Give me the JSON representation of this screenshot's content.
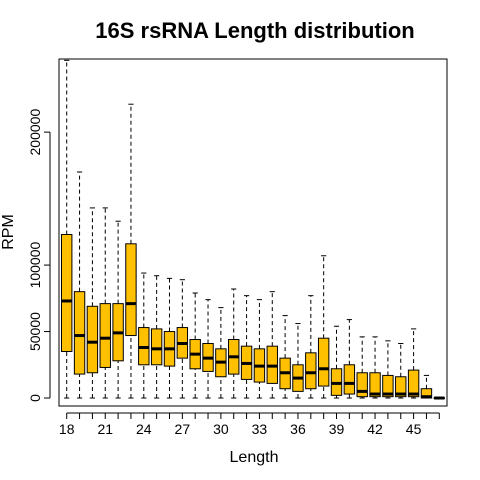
{
  "chart_data": {
    "type": "boxplot",
    "title": "16S rsRNA Length distribution",
    "xlabel": "Length",
    "ylabel": "RPM",
    "box_color": "#FFC000",
    "ylim": [
      -6000,
      255000
    ],
    "yticks": [
      0,
      50000,
      100000,
      200000
    ],
    "xtick_labels": [
      "18",
      "21",
      "24",
      "27",
      "30",
      "33",
      "36",
      "39",
      "42",
      "45"
    ],
    "categories": [
      18,
      19,
      20,
      21,
      22,
      23,
      24,
      25,
      26,
      27,
      28,
      29,
      30,
      31,
      32,
      33,
      34,
      35,
      36,
      37,
      38,
      39,
      40,
      41,
      42,
      43,
      44,
      45,
      46,
      47
    ],
    "boxes": [
      {
        "x": 18,
        "min": 0,
        "q1": 35000,
        "median": 73000,
        "q3": 123000,
        "max": 254000
      },
      {
        "x": 19,
        "min": 0,
        "q1": 18000,
        "median": 47000,
        "q3": 80000,
        "max": 170000
      },
      {
        "x": 20,
        "min": 0,
        "q1": 19000,
        "median": 42000,
        "q3": 69000,
        "max": 143000
      },
      {
        "x": 21,
        "min": 0,
        "q1": 23000,
        "median": 45000,
        "q3": 71000,
        "max": 143000
      },
      {
        "x": 22,
        "min": 0,
        "q1": 28000,
        "median": 49000,
        "q3": 71000,
        "max": 133000
      },
      {
        "x": 23,
        "min": 0,
        "q1": 47000,
        "median": 71000,
        "q3": 116000,
        "max": 221000
      },
      {
        "x": 24,
        "min": 0,
        "q1": 25000,
        "median": 38000,
        "q3": 53000,
        "max": 94000
      },
      {
        "x": 25,
        "min": 0,
        "q1": 25000,
        "median": 37000,
        "q3": 52000,
        "max": 92000
      },
      {
        "x": 26,
        "min": 0,
        "q1": 24000,
        "median": 37000,
        "q3": 50000,
        "max": 90000
      },
      {
        "x": 27,
        "min": 0,
        "q1": 30000,
        "median": 41000,
        "q3": 53000,
        "max": 89000
      },
      {
        "x": 28,
        "min": 0,
        "q1": 22000,
        "median": 33000,
        "q3": 44000,
        "max": 79000
      },
      {
        "x": 29,
        "min": 0,
        "q1": 20000,
        "median": 30000,
        "q3": 41000,
        "max": 74000
      },
      {
        "x": 30,
        "min": 0,
        "q1": 16000,
        "median": 27000,
        "q3": 37000,
        "max": 68000
      },
      {
        "x": 31,
        "min": 0,
        "q1": 18000,
        "median": 31000,
        "q3": 44000,
        "max": 82000
      },
      {
        "x": 32,
        "min": 0,
        "q1": 14000,
        "median": 26000,
        "q3": 39000,
        "max": 77000
      },
      {
        "x": 33,
        "min": 0,
        "q1": 12000,
        "median": 24000,
        "q3": 37000,
        "max": 74000
      },
      {
        "x": 34,
        "min": 0,
        "q1": 11000,
        "median": 24000,
        "q3": 39000,
        "max": 80000
      },
      {
        "x": 35,
        "min": 0,
        "q1": 7000,
        "median": 19000,
        "q3": 30000,
        "max": 62000
      },
      {
        "x": 36,
        "min": 0,
        "q1": 5000,
        "median": 15000,
        "q3": 25000,
        "max": 56000
      },
      {
        "x": 37,
        "min": 0,
        "q1": 7000,
        "median": 19000,
        "q3": 34000,
        "max": 77000
      },
      {
        "x": 38,
        "min": 0,
        "q1": 9000,
        "median": 22000,
        "q3": 45000,
        "max": 107000
      },
      {
        "x": 39,
        "min": 0,
        "q1": 2000,
        "median": 11000,
        "q3": 22000,
        "max": 54000
      },
      {
        "x": 40,
        "min": 0,
        "q1": 3000,
        "median": 11000,
        "q3": 25000,
        "max": 59000
      },
      {
        "x": 41,
        "min": 0,
        "q1": 1000,
        "median": 5000,
        "q3": 19000,
        "max": 46000
      },
      {
        "x": 42,
        "min": 0,
        "q1": 1000,
        "median": 3000,
        "q3": 19000,
        "max": 46000
      },
      {
        "x": 43,
        "min": 0,
        "q1": 1000,
        "median": 3000,
        "q3": 17000,
        "max": 43000
      },
      {
        "x": 44,
        "min": 0,
        "q1": 1000,
        "median": 3000,
        "q3": 16000,
        "max": 41000
      },
      {
        "x": 45,
        "min": 0,
        "q1": 1000,
        "median": 3000,
        "q3": 21000,
        "max": 52000
      },
      {
        "x": 46,
        "min": 0,
        "q1": 0,
        "median": 1000,
        "q3": 7000,
        "max": 17000
      },
      {
        "x": 47,
        "min": 0,
        "q1": 0,
        "median": 0,
        "q3": 0,
        "max": 0
      }
    ]
  }
}
